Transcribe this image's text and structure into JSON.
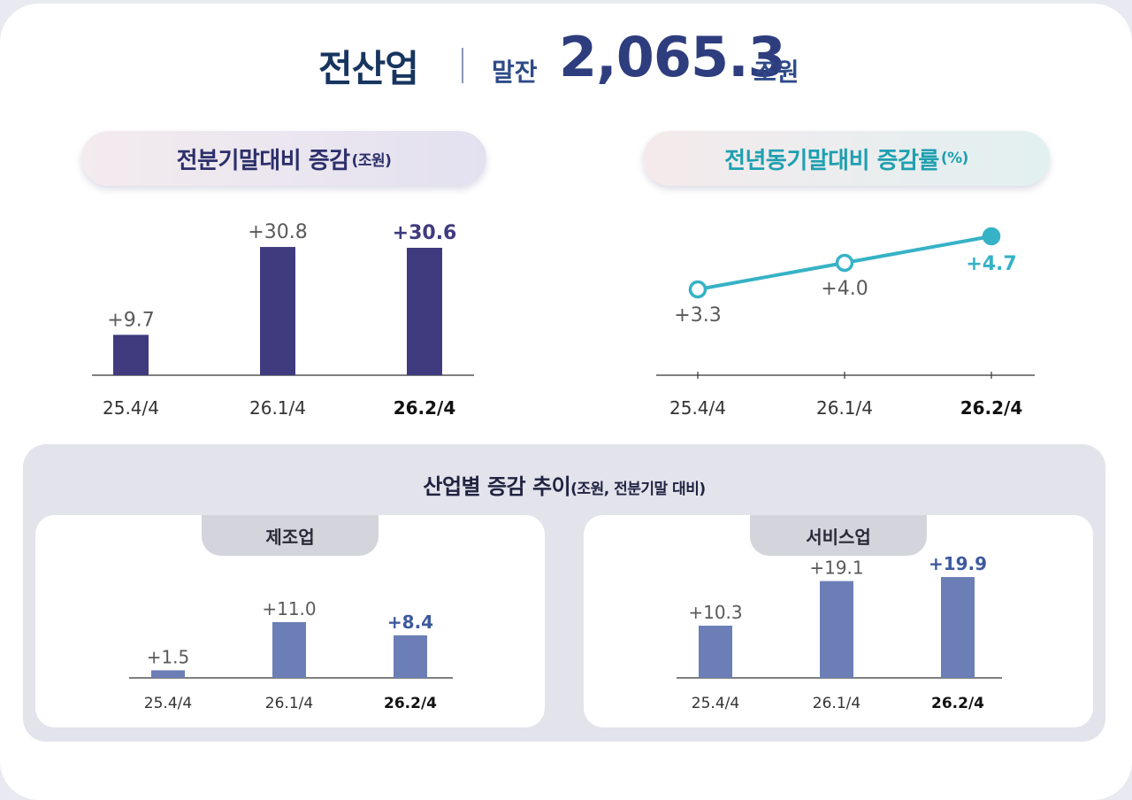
{
  "header": {
    "title": "전산업",
    "label": "말잔",
    "value": "2,065.3",
    "unit": "조원"
  },
  "charts": {
    "left": {
      "title": "전분기말대비 증감",
      "unit": "(조원)"
    },
    "right": {
      "title": "전년동기말대비 증감률",
      "unit": "(%)"
    }
  },
  "panel": {
    "title": "산업별 증감 추이",
    "unit": "(조원, 전분기말 대비)",
    "left_tab": "제조업",
    "right_tab": "서비스업"
  },
  "colors": {
    "bar_main": "#3f3b7e",
    "line": "#36b2c6",
    "bar_sub": "#6b7fb6",
    "highlight_sub": "#3d5a9e",
    "label_gray": "#5a5a5a"
  },
  "chart_data": [
    {
      "type": "bar",
      "categories": [
        "25.4/4",
        "26.1/4",
        "26.2/4"
      ],
      "values": [
        9.7,
        30.8,
        30.6
      ],
      "labels": [
        "+9.7",
        "+30.8",
        "+30.6"
      ],
      "title": "전분기말대비 증감",
      "ylabel": "조원",
      "ylim": [
        0,
        34
      ]
    },
    {
      "type": "line",
      "categories": [
        "25.4/4",
        "26.1/4",
        "26.2/4"
      ],
      "values": [
        3.3,
        4.0,
        4.7
      ],
      "labels": [
        "+3.3",
        "+4.0",
        "+4.7"
      ],
      "title": "전년동기말대비 증감률",
      "ylabel": "%"
    },
    {
      "type": "bar",
      "categories": [
        "25.4/4",
        "26.1/4",
        "26.2/4"
      ],
      "values": [
        1.5,
        11.0,
        8.4
      ],
      "labels": [
        "+1.5",
        "+11.0",
        "+8.4"
      ],
      "title": "제조업",
      "ylim": [
        0,
        22
      ]
    },
    {
      "type": "bar",
      "categories": [
        "25.4/4",
        "26.1/4",
        "26.2/4"
      ],
      "values": [
        10.3,
        19.1,
        19.9
      ],
      "labels": [
        "+10.3",
        "+19.1",
        "+19.9"
      ],
      "title": "서비스업",
      "ylim": [
        0,
        22
      ]
    }
  ]
}
